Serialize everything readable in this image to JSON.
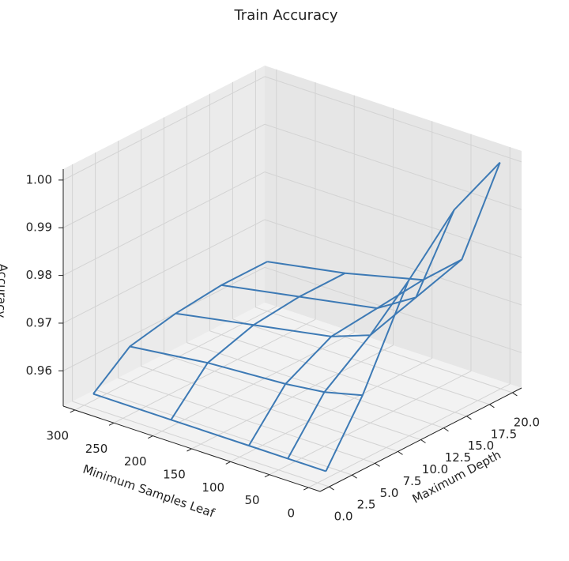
{
  "chart_data": {
    "type": "wireframe3d",
    "title": "Train Accuracy",
    "xlabel": "Maximum Depth",
    "ylabel": "Minimum Samples Leaf",
    "zlabel": "Accuracy",
    "x": [
      1,
      5,
      10,
      15,
      20
    ],
    "y": [
      1,
      50,
      100,
      200,
      300
    ],
    "z": [
      [
        0.954,
        0.966,
        0.985,
        0.995,
        1.0
      ],
      [
        0.954,
        0.964,
        0.971,
        0.974,
        0.977
      ],
      [
        0.954,
        0.963,
        0.968,
        0.969,
        0.97
      ],
      [
        0.954,
        0.962,
        0.965,
        0.966,
        0.966
      ],
      [
        0.954,
        0.96,
        0.962,
        0.963,
        0.963
      ]
    ],
    "color": "#3d7ab5",
    "xlim": [
      -1,
      21
    ],
    "ylim": [
      -15,
      315
    ],
    "zlim": [
      0.9526,
      1.0023
    ],
    "xticks": [
      {
        "value": 0,
        "label": "0.0"
      },
      2.5,
      {
        "value": 5,
        "label": "5.0"
      },
      7.5,
      {
        "value": 10,
        "label": "10.0"
      },
      12.5,
      {
        "value": 15,
        "label": "15.0"
      },
      17.5,
      {
        "value": 20,
        "label": "20.0"
      }
    ],
    "yticks": [
      0,
      50,
      100,
      150,
      200,
      250,
      300
    ],
    "zticks": [
      0.96,
      0.97,
      0.98,
      0.99,
      {
        "value": 1,
        "label": "1.00"
      }
    ],
    "grid": true
  }
}
